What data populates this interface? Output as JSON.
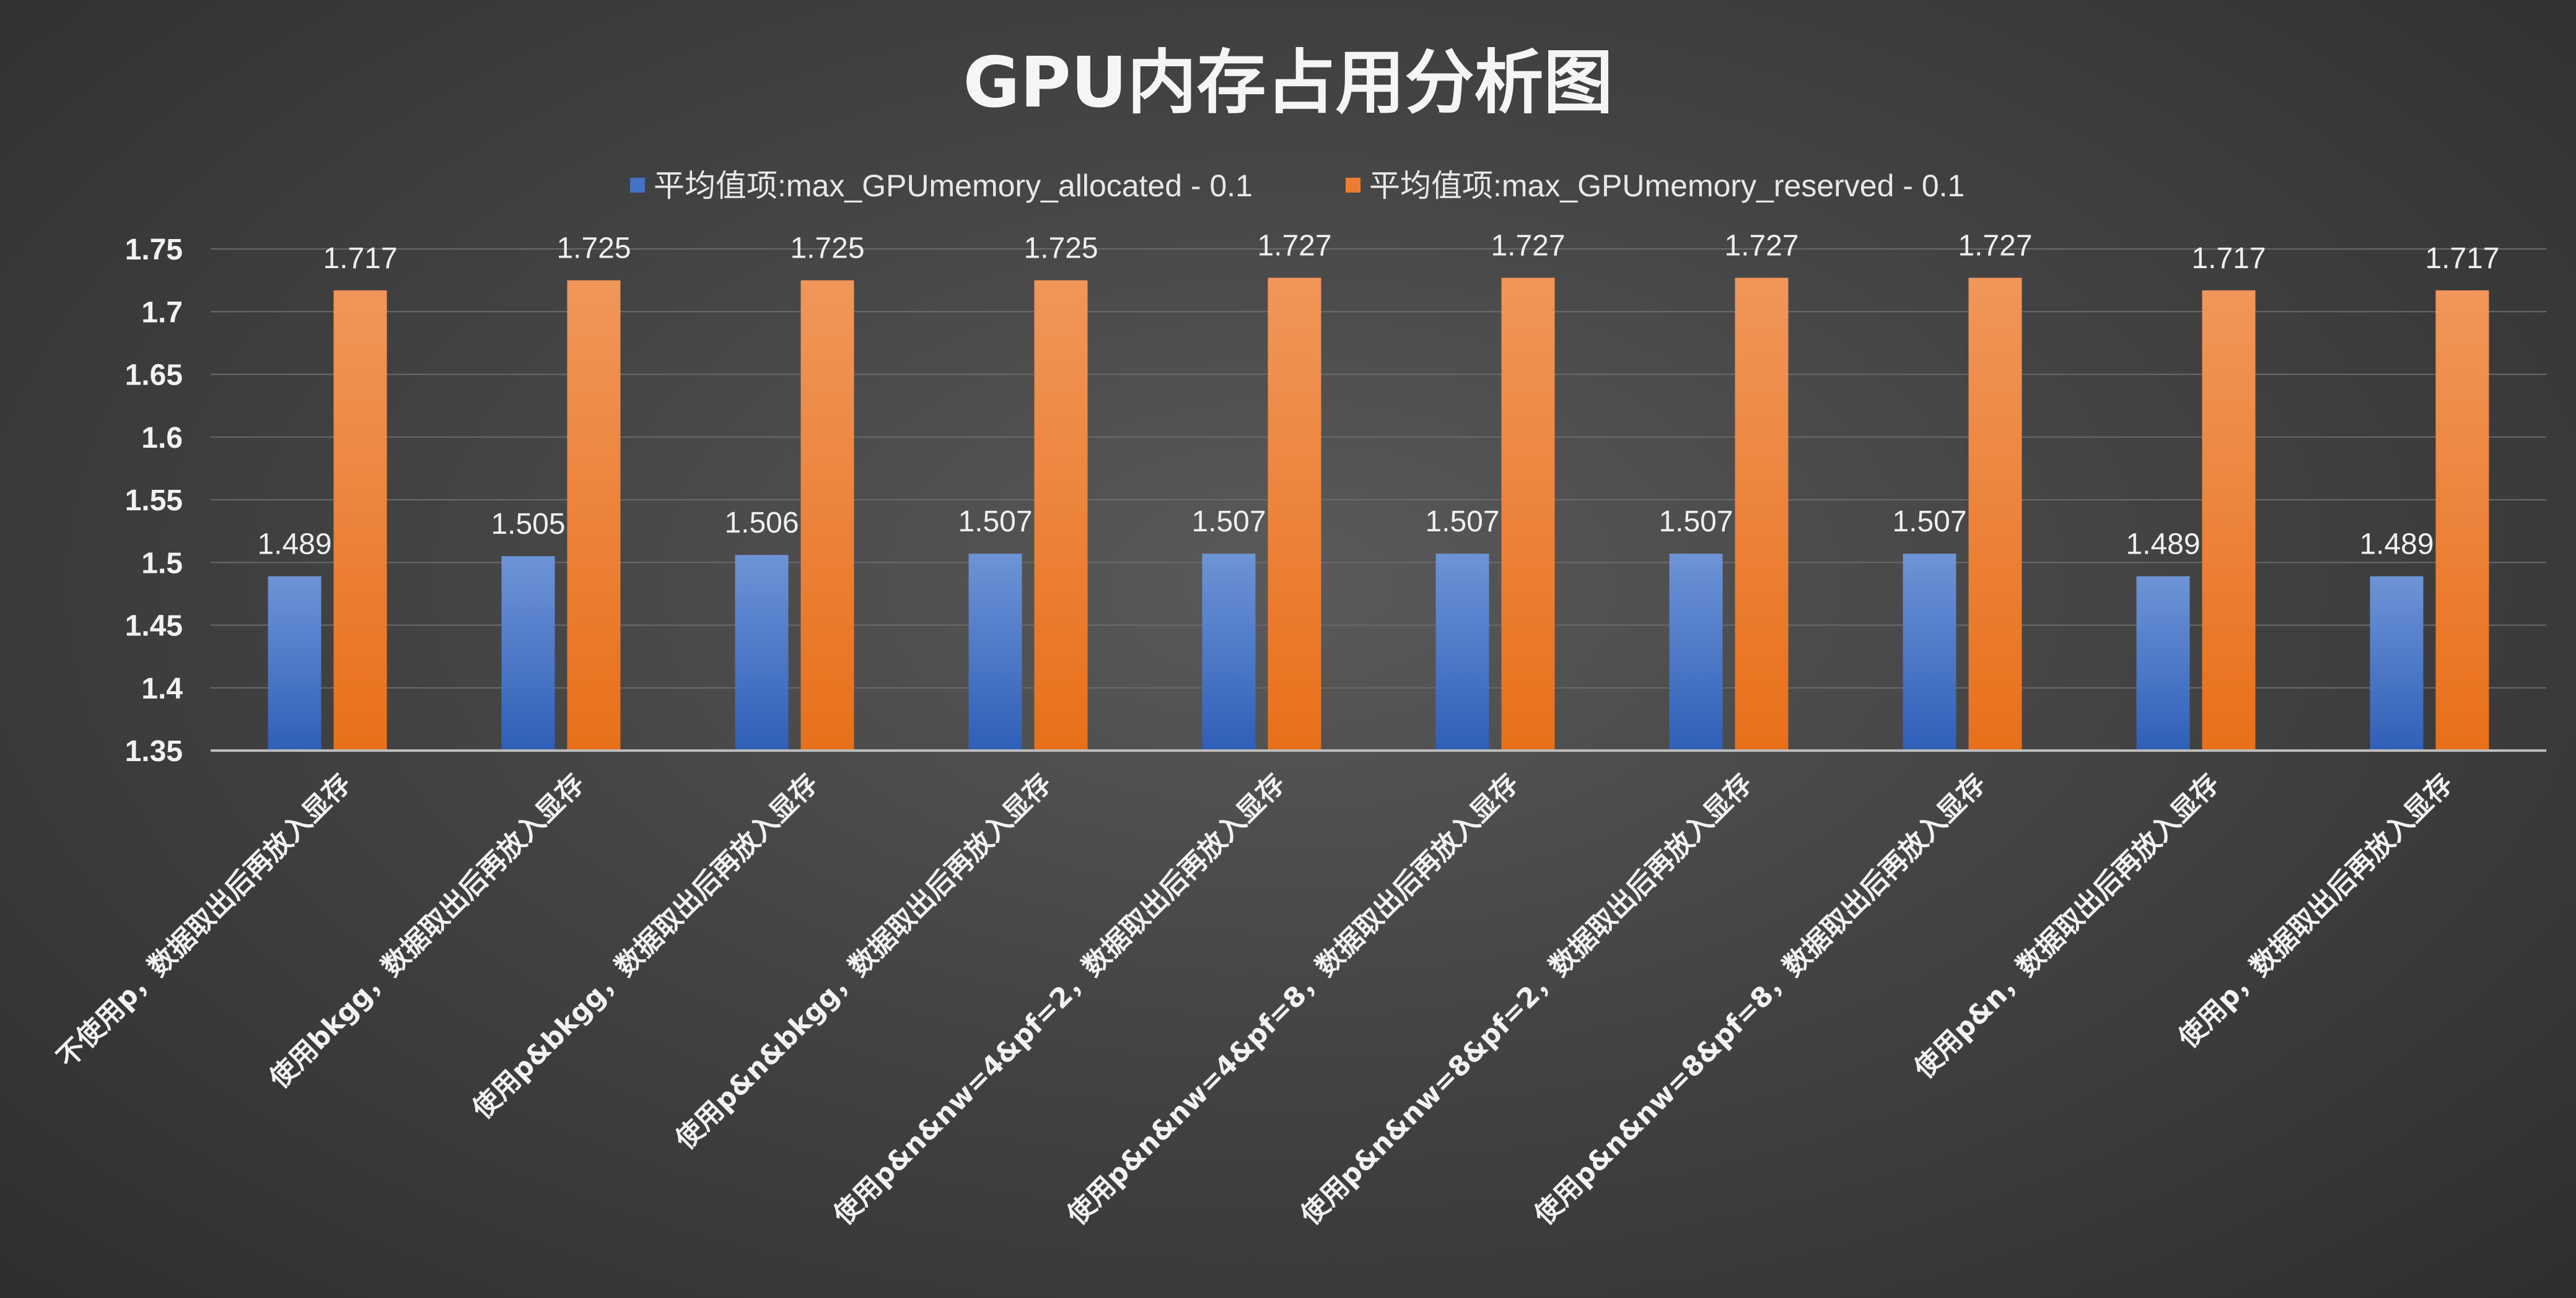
{
  "chart_data": {
    "type": "bar",
    "title": "GPU内存占用分析图",
    "xlabel": "",
    "ylabel": "",
    "ylim": [
      1.35,
      1.75
    ],
    "yticks": [
      "1.35",
      "1.4",
      "1.45",
      "1.5",
      "1.55",
      "1.6",
      "1.65",
      "1.7",
      "1.75"
    ],
    "grid": true,
    "legend_position": "top-center",
    "categories": [
      "不使用p，数据取出后再放入显存",
      "使用bkgg，数据取出后再放入显存",
      "使用p&bkgg，数据取出后再放入显存",
      "使用p&n&bkgg，数据取出后再放入显存",
      "使用p&n&nw=4&pf=2，数据取出后再放入显存",
      "使用p&n&nw=4&pf=8，数据取出后再放入显存",
      "使用p&n&nw=8&pf=2，数据取出后再放入显存",
      "使用p&n&nw=8&pf=8，数据取出后再放入显存",
      "使用p&n，数据取出后再放入显存",
      "使用p，数据取出后再放入显存"
    ],
    "series": [
      {
        "name": "平均值项:max_GPUmemory_allocated - 0.1",
        "color": "#4472c4",
        "values": [
          1.489,
          1.505,
          1.506,
          1.507,
          1.507,
          1.507,
          1.507,
          1.507,
          1.489,
          1.489
        ],
        "labels": [
          "1.489",
          "1.505",
          "1.506",
          "1.507",
          "1.507",
          "1.507",
          "1.507",
          "1.507",
          "1.489",
          "1.489"
        ]
      },
      {
        "name": "平均值项:max_GPUmemory_reserved - 0.1",
        "color": "#ed7d31",
        "values": [
          1.717,
          1.725,
          1.725,
          1.725,
          1.727,
          1.727,
          1.727,
          1.727,
          1.717,
          1.717
        ],
        "labels": [
          "1.717",
          "1.725",
          "1.725",
          "1.725",
          "1.727",
          "1.727",
          "1.727",
          "1.727",
          "1.717",
          "1.717"
        ]
      }
    ]
  }
}
